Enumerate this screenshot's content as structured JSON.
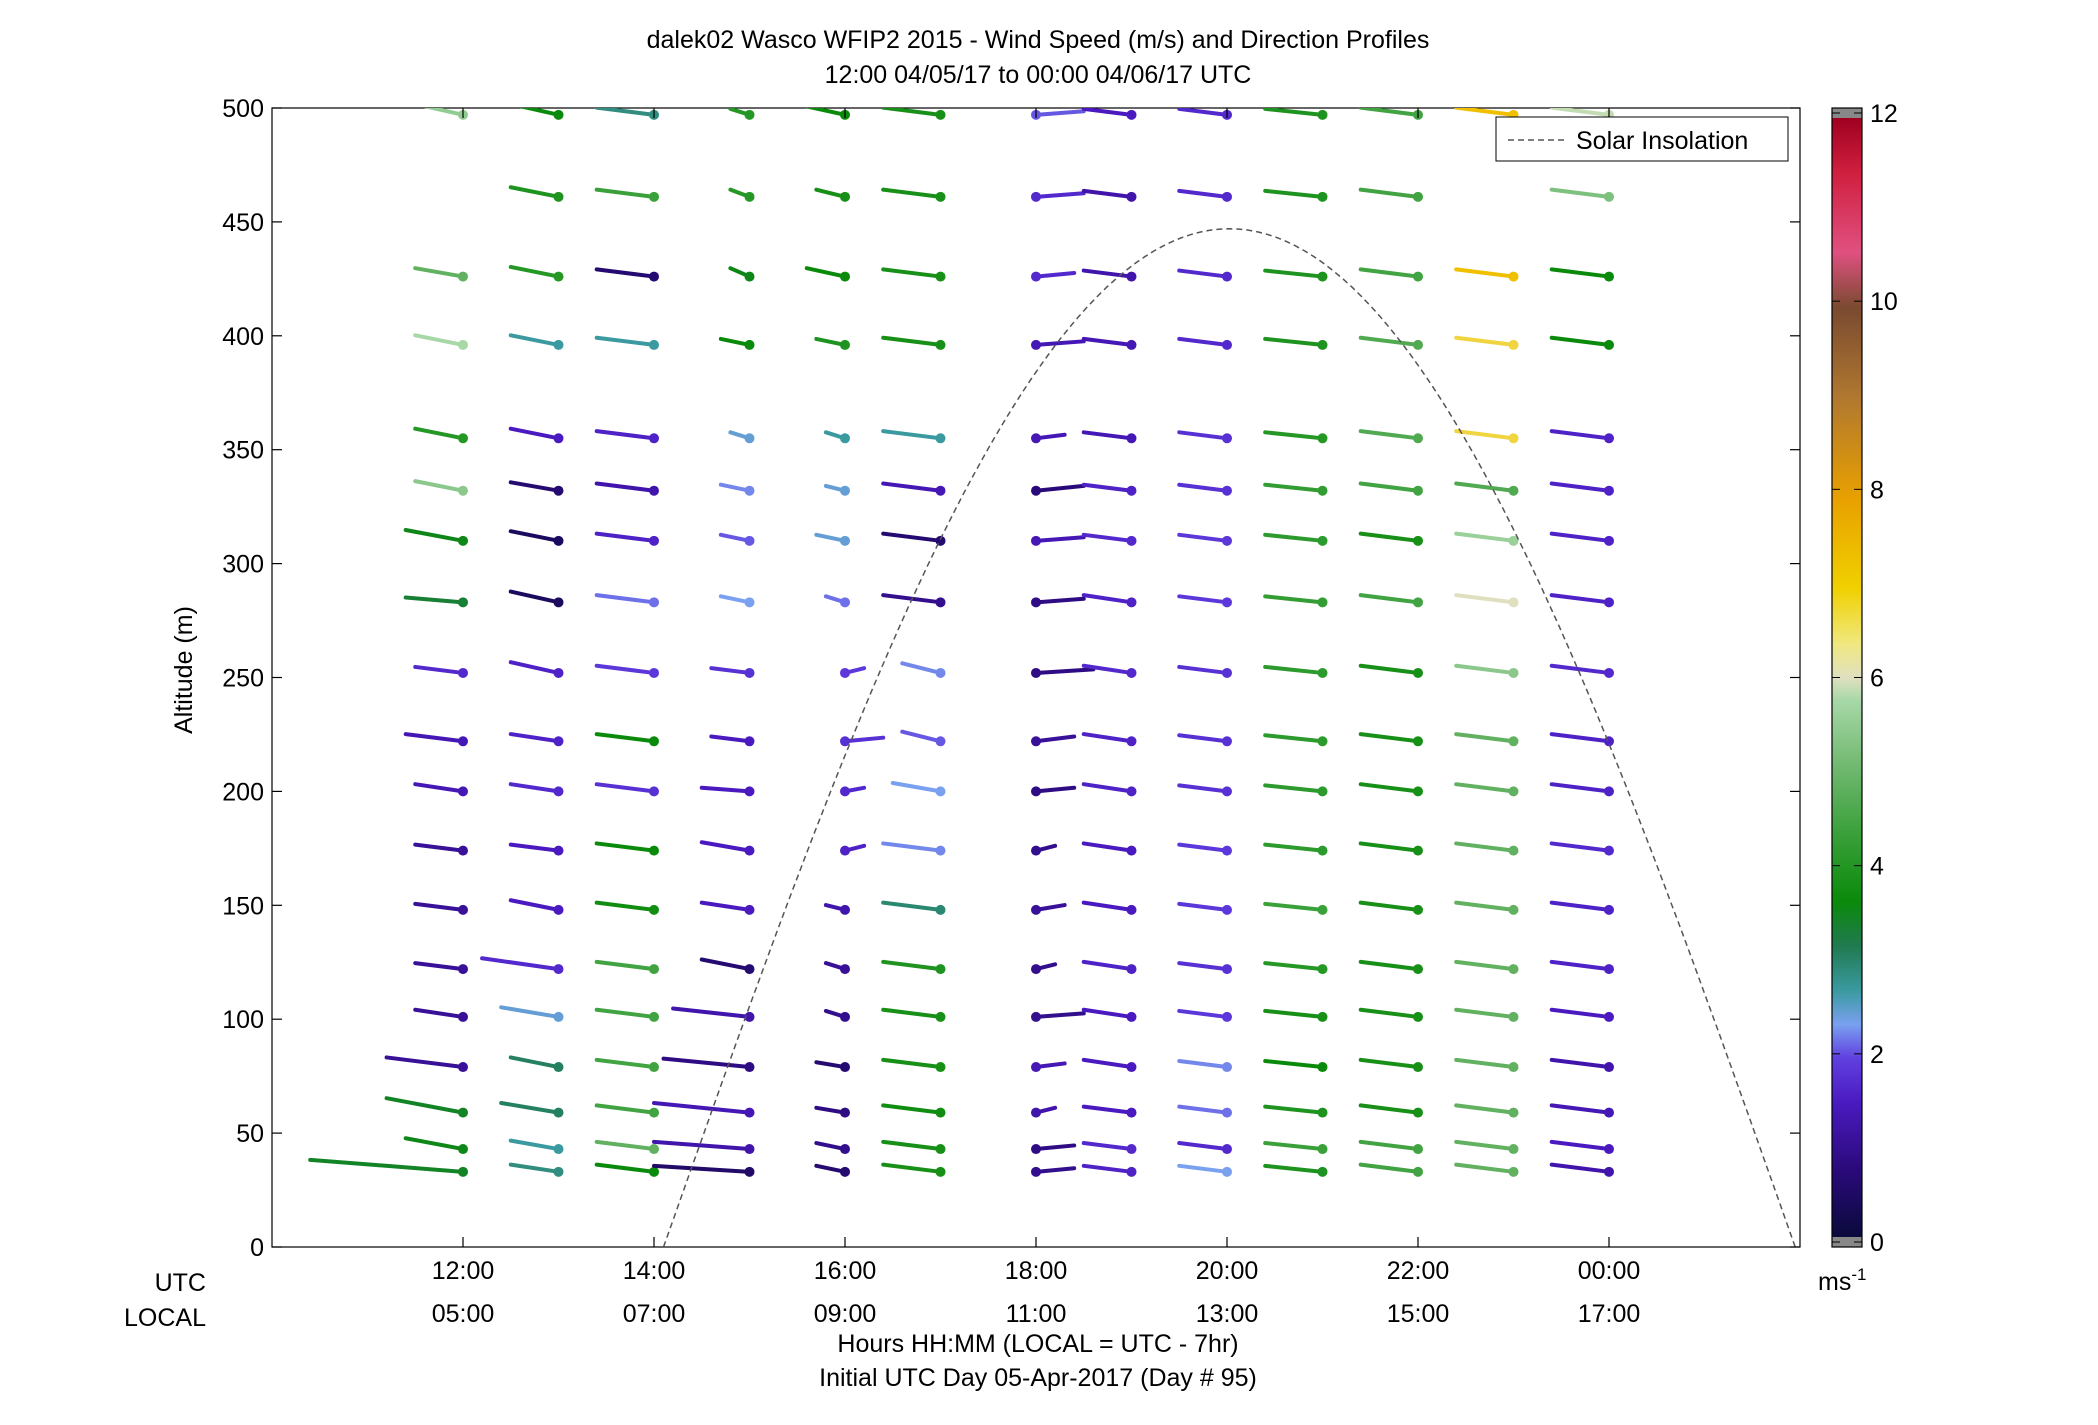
{
  "chart_data": {
    "type": "scatter",
    "title": "dalek02 Wasco WFIP2 2015 - Wind Speed (m/s) and Direction Profiles",
    "subtitle": "12:00 04/05/17 to 00:00 04/06/17  UTC",
    "ylabel": "Altitude (m)",
    "xlabel": "Hours HH:MM  (LOCAL = UTC - 7hr)",
    "xlabel2": "Initial UTC Day 05-Apr-2017 (Day # 95)",
    "ylim": [
      0,
      500
    ],
    "xlim_hours": [
      10,
      26
    ],
    "yticks": [
      "0",
      "50",
      "100",
      "150",
      "200",
      "250",
      "300",
      "350",
      "400",
      "450",
      "500"
    ],
    "xticks_utc": [
      "12:00",
      "14:00",
      "16:00",
      "18:00",
      "20:00",
      "22:00",
      "00:00"
    ],
    "xticks_local": [
      "05:00",
      "07:00",
      "09:00",
      "11:00",
      "13:00",
      "15:00",
      "17:00"
    ],
    "row_label_utc": "UTC",
    "row_label_local": "LOCAL",
    "legend": "Solar Insolation",
    "legend_position": "top-right",
    "colorbar": {
      "unit": "ms",
      "unit_exponent": "-1",
      "range": [
        0,
        12
      ],
      "ticks": [
        "0",
        "2",
        "4",
        "6",
        "8",
        "10",
        "12"
      ]
    },
    "heights": [
      33,
      43,
      59,
      79,
      101,
      122,
      148,
      174,
      200,
      222,
      252,
      283,
      310,
      332,
      355,
      396,
      426,
      461,
      497
    ],
    "profile_times_hours": [
      12,
      13,
      14,
      15,
      16,
      17,
      18,
      19,
      20,
      21,
      22,
      23,
      24
    ],
    "barbs": [
      [
        [
          3.4,
          -1.6,
          1.0
        ],
        [
          3.5,
          -0.6,
          0.9
        ],
        [
          3.4,
          -0.8,
          1.2
        ],
        [
          1.0,
          -0.8,
          0.8
        ],
        [
          1.0,
          -0.5,
          0.6
        ],
        [
          1.0,
          -0.5,
          0.5
        ],
        [
          1.0,
          -0.5,
          0.5
        ],
        [
          1.0,
          -0.5,
          0.5
        ],
        [
          1.3,
          -0.5,
          0.6
        ],
        [
          1.3,
          -0.6,
          0.6
        ],
        [
          1.6,
          -0.5,
          0.5
        ],
        [
          3.3,
          -0.6,
          0.4
        ],
        [
          3.5,
          -0.6,
          0.9
        ],
        [
          5.4,
          -0.5,
          0.8
        ],
        [
          4.0,
          -0.5,
          0.8
        ],
        [
          5.8,
          -0.5,
          0.8
        ],
        [
          4.8,
          -0.5,
          0.7
        ],
        null,
        [
          5.5,
          -0.5,
          0.9
        ]
      ],
      [
        [
          2.8,
          -0.5,
          0.6
        ],
        [
          2.6,
          -0.5,
          0.7
        ],
        [
          3.0,
          -0.6,
          0.8
        ],
        [
          3.0,
          -0.5,
          0.8
        ],
        [
          2.4,
          -0.6,
          0.8
        ],
        [
          1.6,
          -0.8,
          0.9
        ],
        [
          1.4,
          -0.5,
          0.8
        ],
        [
          1.4,
          -0.5,
          0.5
        ],
        [
          1.6,
          -0.5,
          0.6
        ],
        [
          1.5,
          -0.5,
          0.6
        ],
        [
          1.5,
          -0.5,
          0.9
        ],
        [
          0.4,
          -0.5,
          0.9
        ],
        [
          0.4,
          -0.5,
          0.8
        ],
        [
          0.6,
          -0.5,
          0.7
        ],
        [
          1.4,
          -0.5,
          0.8
        ],
        [
          2.6,
          -0.5,
          0.8
        ],
        [
          4.0,
          -0.5,
          0.8
        ],
        [
          3.9,
          -0.5,
          0.8
        ],
        [
          3.6,
          -0.5,
          0.9
        ]
      ],
      [
        [
          3.6,
          -0.6,
          0.6
        ],
        [
          4.8,
          -0.6,
          0.6
        ],
        [
          4.4,
          -0.6,
          0.6
        ],
        [
          4.4,
          -0.6,
          0.6
        ],
        [
          4.4,
          -0.6,
          0.6
        ],
        [
          4.4,
          -0.6,
          0.6
        ],
        [
          3.7,
          -0.6,
          0.6
        ],
        [
          3.6,
          -0.6,
          0.6
        ],
        [
          1.7,
          -0.6,
          0.6
        ],
        [
          3.6,
          -0.6,
          0.6
        ],
        [
          1.8,
          -0.6,
          0.6
        ],
        [
          2.1,
          -0.6,
          0.6
        ],
        [
          1.5,
          -0.6,
          0.6
        ],
        [
          1.2,
          -0.6,
          0.6
        ],
        [
          1.5,
          -0.6,
          0.6
        ],
        [
          2.6,
          -0.6,
          0.6
        ],
        [
          0.6,
          -0.6,
          0.6
        ],
        [
          4.3,
          -0.6,
          0.6
        ],
        [
          2.8,
          -0.6,
          0.6
        ]
      ],
      [
        [
          0.5,
          -1.0,
          0.5
        ],
        [
          1.2,
          -1.0,
          0.6
        ],
        [
          1.3,
          -1.0,
          0.8
        ],
        [
          0.8,
          -0.9,
          0.7
        ],
        [
          1.2,
          -0.8,
          0.7
        ],
        [
          0.6,
          -0.5,
          0.8
        ],
        [
          1.4,
          -0.5,
          0.6
        ],
        [
          1.4,
          -0.5,
          0.7
        ],
        [
          1.4,
          -0.5,
          0.3
        ],
        [
          1.4,
          -0.4,
          0.4
        ],
        [
          1.7,
          -0.4,
          0.4
        ],
        [
          2.3,
          -0.3,
          0.5
        ],
        [
          2.0,
          -0.3,
          0.5
        ],
        [
          2.2,
          -0.3,
          0.5
        ],
        [
          2.4,
          -0.2,
          0.5
        ],
        [
          3.6,
          -0.3,
          0.5
        ],
        [
          3.5,
          -0.2,
          0.7
        ],
        [
          4.0,
          -0.2,
          0.6
        ],
        [
          4.0,
          -0.2,
          0.5
        ]
      ],
      [
        [
          0.6,
          -0.3,
          0.5
        ],
        [
          0.9,
          -0.3,
          0.5
        ],
        [
          0.8,
          -0.3,
          0.4
        ],
        [
          0.6,
          -0.3,
          0.4
        ],
        [
          0.9,
          -0.2,
          0.5
        ],
        [
          1.0,
          -0.2,
          0.5
        ],
        [
          1.2,
          -0.2,
          0.4
        ],
        [
          1.5,
          0.2,
          0.4
        ],
        [
          1.6,
          0.2,
          0.3
        ],
        [
          1.7,
          0.4,
          0.3
        ],
        [
          1.8,
          0.2,
          0.4
        ],
        [
          2.1,
          -0.2,
          0.5
        ],
        [
          2.4,
          -0.3,
          0.5
        ],
        [
          2.4,
          -0.2,
          0.4
        ],
        [
          2.6,
          -0.2,
          0.5
        ],
        [
          3.9,
          -0.3,
          0.5
        ],
        [
          3.6,
          -0.4,
          0.7
        ],
        [
          3.8,
          -0.3,
          0.6
        ],
        [
          3.6,
          -0.4,
          0.7
        ]
      ],
      [
        [
          3.8,
          -0.6,
          0.6
        ],
        [
          3.8,
          -0.6,
          0.6
        ],
        [
          3.7,
          -0.6,
          0.6
        ],
        [
          3.8,
          -0.6,
          0.6
        ],
        [
          3.8,
          -0.6,
          0.6
        ],
        [
          3.9,
          -0.6,
          0.6
        ],
        [
          2.9,
          -0.6,
          0.6
        ],
        [
          2.2,
          -0.6,
          0.6
        ],
        [
          2.3,
          -0.5,
          0.7
        ],
        [
          2.0,
          -0.4,
          0.8
        ],
        [
          2.2,
          -0.4,
          0.8
        ],
        [
          0.9,
          -0.6,
          0.6
        ],
        [
          0.6,
          -0.6,
          0.6
        ],
        [
          1.3,
          -0.6,
          0.6
        ],
        [
          2.6,
          -0.6,
          0.6
        ],
        [
          3.8,
          -0.6,
          0.6
        ],
        [
          3.8,
          -0.6,
          0.6
        ],
        [
          3.8,
          -0.6,
          0.6
        ],
        [
          3.8,
          -0.6,
          0.6
        ]
      ],
      [
        [
          0.9,
          0.4,
          0.3
        ],
        [
          0.8,
          0.4,
          0.3
        ],
        [
          1.2,
          0.2,
          0.4
        ],
        [
          1.3,
          0.3,
          0.3
        ],
        [
          0.9,
          0.5,
          0.3
        ],
        [
          0.9,
          0.2,
          0.4
        ],
        [
          1.0,
          0.3,
          0.4
        ],
        [
          0.9,
          0.2,
          0.4
        ],
        [
          0.8,
          0.4,
          0.3
        ],
        [
          1.0,
          0.4,
          0.4
        ],
        [
          0.8,
          0.6,
          0.3
        ],
        [
          0.8,
          0.5,
          0.3
        ],
        [
          1.3,
          0.5,
          0.3
        ],
        [
          0.7,
          0.5,
          0.4
        ],
        [
          1.3,
          0.3,
          0.3
        ],
        [
          1.3,
          0.5,
          0.3
        ],
        [
          1.6,
          0.4,
          0.3
        ],
        [
          1.6,
          0.5,
          0.3
        ],
        [
          2.0,
          0.5,
          0.3
        ]
      ],
      [
        [
          1.5,
          -0.5,
          0.5
        ],
        [
          1.6,
          -0.5,
          0.5
        ],
        [
          1.4,
          -0.5,
          0.5
        ],
        [
          1.4,
          -0.5,
          0.6
        ],
        [
          1.4,
          -0.5,
          0.6
        ],
        [
          1.5,
          -0.5,
          0.6
        ],
        [
          1.4,
          -0.5,
          0.6
        ],
        [
          1.4,
          -0.5,
          0.6
        ],
        [
          1.5,
          -0.5,
          0.6
        ],
        [
          1.5,
          -0.5,
          0.6
        ],
        [
          1.6,
          -0.5,
          0.6
        ],
        [
          1.5,
          -0.5,
          0.6
        ],
        [
          1.6,
          -0.5,
          0.5
        ],
        [
          1.5,
          -0.5,
          0.5
        ],
        [
          1.3,
          -0.5,
          0.5
        ],
        [
          1.3,
          -0.5,
          0.5
        ],
        [
          1.2,
          -0.5,
          0.5
        ],
        [
          1.2,
          -0.5,
          0.5
        ],
        [
          1.4,
          -0.5,
          0.5
        ]
      ],
      [
        [
          2.3,
          -0.5,
          0.5
        ],
        [
          1.6,
          -0.5,
          0.5
        ],
        [
          2.1,
          -0.5,
          0.5
        ],
        [
          2.2,
          -0.5,
          0.5
        ],
        [
          1.8,
          -0.5,
          0.5
        ],
        [
          1.7,
          -0.5,
          0.5
        ],
        [
          1.8,
          -0.5,
          0.5
        ],
        [
          1.8,
          -0.5,
          0.5
        ],
        [
          1.7,
          -0.5,
          0.5
        ],
        [
          1.7,
          -0.5,
          0.5
        ],
        [
          1.7,
          -0.5,
          0.5
        ],
        [
          1.8,
          -0.5,
          0.5
        ],
        [
          1.8,
          -0.5,
          0.5
        ],
        [
          1.7,
          -0.5,
          0.5
        ],
        [
          1.7,
          -0.5,
          0.5
        ],
        [
          1.6,
          -0.5,
          0.5
        ],
        [
          1.6,
          -0.5,
          0.5
        ],
        [
          1.6,
          -0.5,
          0.5
        ],
        [
          1.6,
          -0.5,
          0.5
        ]
      ],
      [
        [
          3.9,
          -0.6,
          0.5
        ],
        [
          4.3,
          -0.6,
          0.5
        ],
        [
          3.9,
          -0.6,
          0.5
        ],
        [
          3.6,
          -0.6,
          0.5
        ],
        [
          3.8,
          -0.6,
          0.5
        ],
        [
          4.0,
          -0.6,
          0.5
        ],
        [
          4.3,
          -0.6,
          0.5
        ],
        [
          4.1,
          -0.6,
          0.5
        ],
        [
          4.1,
          -0.6,
          0.5
        ],
        [
          4.1,
          -0.6,
          0.5
        ],
        [
          4.1,
          -0.6,
          0.5
        ],
        [
          4.2,
          -0.6,
          0.5
        ],
        [
          4.1,
          -0.6,
          0.5
        ],
        [
          4.2,
          -0.6,
          0.5
        ],
        [
          4.0,
          -0.6,
          0.5
        ],
        [
          3.9,
          -0.6,
          0.5
        ],
        [
          3.9,
          -0.6,
          0.5
        ],
        [
          3.9,
          -0.6,
          0.5
        ],
        [
          3.9,
          -0.6,
          0.5
        ]
      ],
      [
        [
          4.4,
          -0.6,
          0.6
        ],
        [
          4.4,
          -0.6,
          0.6
        ],
        [
          3.8,
          -0.6,
          0.6
        ],
        [
          3.8,
          -0.6,
          0.6
        ],
        [
          3.8,
          -0.6,
          0.6
        ],
        [
          3.8,
          -0.6,
          0.6
        ],
        [
          3.8,
          -0.6,
          0.6
        ],
        [
          3.8,
          -0.6,
          0.6
        ],
        [
          3.8,
          -0.6,
          0.6
        ],
        [
          3.8,
          -0.6,
          0.6
        ],
        [
          3.8,
          -0.6,
          0.6
        ],
        [
          4.4,
          -0.6,
          0.6
        ],
        [
          3.8,
          -0.6,
          0.6
        ],
        [
          4.4,
          -0.6,
          0.6
        ],
        [
          4.6,
          -0.6,
          0.6
        ],
        [
          4.6,
          -0.6,
          0.6
        ],
        [
          4.4,
          -0.6,
          0.6
        ],
        [
          4.4,
          -0.6,
          0.6
        ],
        [
          4.4,
          -0.6,
          0.6
        ]
      ],
      [
        [
          4.8,
          -0.6,
          0.6
        ],
        [
          4.8,
          -0.6,
          0.6
        ],
        [
          4.8,
          -0.6,
          0.6
        ],
        [
          4.8,
          -0.6,
          0.6
        ],
        [
          4.8,
          -0.6,
          0.6
        ],
        [
          4.8,
          -0.6,
          0.6
        ],
        [
          4.8,
          -0.6,
          0.6
        ],
        [
          4.8,
          -0.6,
          0.6
        ],
        [
          4.8,
          -0.6,
          0.6
        ],
        [
          4.8,
          -0.6,
          0.6
        ],
        [
          5.4,
          -0.6,
          0.6
        ],
        [
          6.2,
          -0.6,
          0.6
        ],
        [
          5.6,
          -0.6,
          0.6
        ],
        [
          4.6,
          -0.6,
          0.6
        ],
        [
          6.8,
          -0.6,
          0.6
        ],
        [
          6.8,
          -0.6,
          0.6
        ],
        [
          7.0,
          -0.6,
          0.6
        ],
        [
          null,
          0,
          0
        ],
        [
          7.0,
          -0.6,
          0.6
        ]
      ],
      [
        [
          1.2,
          -0.6,
          0.6
        ],
        [
          1.4,
          -0.6,
          0.6
        ],
        [
          1.3,
          -0.6,
          0.6
        ],
        [
          1.2,
          -0.6,
          0.6
        ],
        [
          1.4,
          -0.6,
          0.6
        ],
        [
          1.5,
          -0.6,
          0.6
        ],
        [
          1.5,
          -0.6,
          0.6
        ],
        [
          1.6,
          -0.6,
          0.6
        ],
        [
          1.5,
          -0.6,
          0.6
        ],
        [
          1.5,
          -0.6,
          0.6
        ],
        [
          1.6,
          -0.6,
          0.6
        ],
        [
          1.5,
          -0.6,
          0.6
        ],
        [
          1.5,
          -0.6,
          0.6
        ],
        [
          1.5,
          -0.6,
          0.6
        ],
        [
          1.5,
          -0.6,
          0.6
        ],
        [
          3.6,
          -0.6,
          0.6
        ],
        [
          3.6,
          -0.6,
          0.6
        ],
        [
          5.2,
          -0.6,
          0.6
        ],
        [
          6.0,
          -0.6,
          0.6
        ]
      ]
    ]
  }
}
